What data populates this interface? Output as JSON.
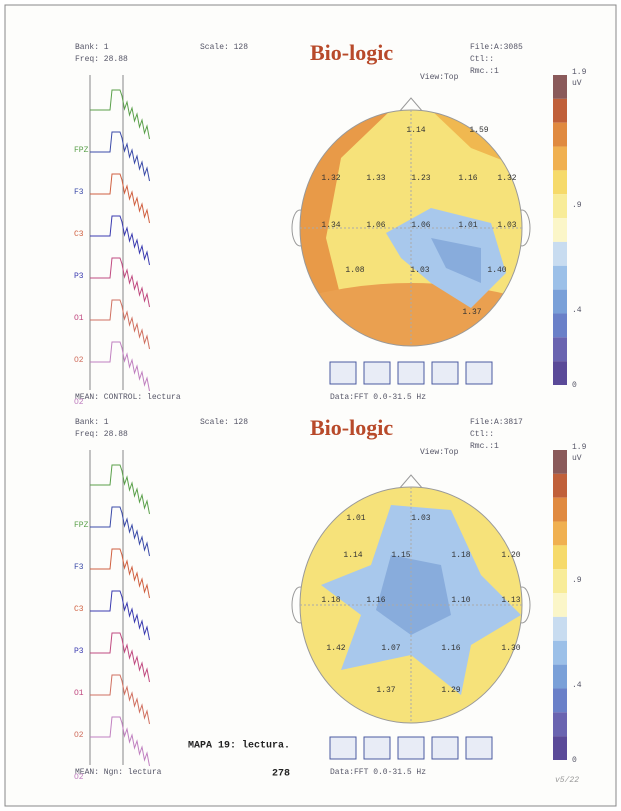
{
  "panels": [
    {
      "bank": "Bank: 1",
      "freq": "Freq: 28.88",
      "scale": "Scale: 128",
      "logo": "Bio-logic",
      "file": "File:A:3085",
      "ctl": "Ctl::",
      "rmc": "Rmc.:1",
      "view": "View:Top",
      "colorbar_labels": [
        "1.9",
        "uV",
        ".9",
        ".4",
        "0"
      ],
      "channels": [
        "FPZ",
        "F3",
        "C3",
        "P3",
        "O1",
        "O2",
        "O2"
      ],
      "map_labels": [
        "1.14",
        "1.59",
        "1.32",
        "1.33",
        "1.23",
        "1.16",
        "1.32",
        "1.34",
        "1.06",
        "1.06",
        "1.01",
        "1.03",
        "1.08",
        "1.03",
        "1.40",
        "1.37"
      ],
      "footer": "MEAN: CONTROL: lectura",
      "data_range": "Data:FFT 0.0-31.5 Hz"
    },
    {
      "bank": "Bank: 1",
      "freq": "Freq: 28.88",
      "scale": "Scale: 128",
      "logo": "Bio-logic",
      "file": "File:A:3817",
      "ctl": "Ctl::",
      "rmc": "Rmc.:1",
      "view": "View:Top",
      "colorbar_labels": [
        "1.9",
        "uV",
        ".9",
        ".4",
        "0"
      ],
      "channels": [
        "FPZ",
        "F3",
        "C3",
        "P3",
        "O1",
        "O2",
        "O2"
      ],
      "map_labels": [
        "1.01",
        "1.03",
        "1.14",
        "1.15",
        "1.18",
        "1.20",
        "1.18",
        "1.16",
        "1.10",
        "1.13",
        "1.42",
        "1.07",
        "1.16",
        "1.30",
        "1.37",
        "1.29"
      ],
      "footer": "MEAN: Ngn: lectura",
      "data_range": "Data:FFT 0.0-31.5 Hz"
    }
  ],
  "caption": "MAPA 19: lectura.",
  "page_number": "278",
  "handwritten": "v5/22"
}
